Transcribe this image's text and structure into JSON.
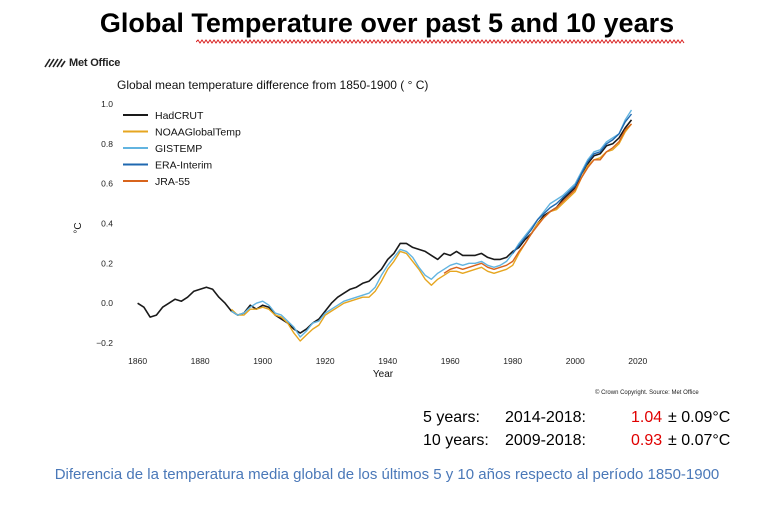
{
  "slide": {
    "title": "Global Temperature over past 5 and 10 years",
    "logo": "Met Office",
    "copyright": "© Crown Copyright. Source: Met Office",
    "caption": "Diferencia de la temperatura media global de los últimos 5 y 10 años respecto al período 1850-1900",
    "stats": [
      {
        "label": "5 years:",
        "range": "2014-2018:",
        "value": "1.04",
        "uncertainty": "± 0.09°C"
      },
      {
        "label": "10 years:",
        "range": "2009-2018:",
        "value": "0.93",
        "uncertainty": "± 0.07°C"
      }
    ]
  },
  "chart_data": {
    "type": "line",
    "title": "Global mean temperature difference from 1850-1900 ( ° C)",
    "xlabel": "Year",
    "ylabel": "°C",
    "xlim": [
      1855,
      2022
    ],
    "ylim": [
      -0.22,
      1.0
    ],
    "xticks": [
      1860,
      1880,
      1900,
      1920,
      1940,
      1960,
      1980,
      2000,
      2020
    ],
    "yticks": [
      -0.2,
      0.0,
      0.2,
      0.4,
      0.6,
      0.8,
      1.0
    ],
    "ytick_labels": [
      "−0.2",
      "0.0",
      "0.2",
      "0.4",
      "0.6",
      "0.8",
      "1.0"
    ],
    "grid": false,
    "legend": "top-left",
    "series": [
      {
        "name": "HadCRUT",
        "color": "#1a1a1a",
        "x": [
          1860,
          1862,
          1864,
          1866,
          1868,
          1870,
          1872,
          1874,
          1876,
          1878,
          1880,
          1882,
          1884,
          1886,
          1888,
          1890,
          1892,
          1894,
          1896,
          1898,
          1900,
          1902,
          1904,
          1906,
          1908,
          1910,
          1912,
          1914,
          1916,
          1918,
          1920,
          1922,
          1924,
          1926,
          1928,
          1930,
          1932,
          1934,
          1936,
          1938,
          1940,
          1942,
          1944,
          1946,
          1948,
          1950,
          1952,
          1954,
          1956,
          1958,
          1960,
          1962,
          1964,
          1966,
          1968,
          1970,
          1972,
          1974,
          1976,
          1978,
          1980,
          1982,
          1984,
          1986,
          1988,
          1990,
          1992,
          1994,
          1996,
          1998,
          2000,
          2002,
          2004,
          2006,
          2008,
          2010,
          2012,
          2014,
          2016,
          2018
        ],
        "y": [
          0.0,
          -0.02,
          -0.07,
          -0.06,
          -0.02,
          0.0,
          0.02,
          0.01,
          0.03,
          0.06,
          0.07,
          0.08,
          0.07,
          0.03,
          0.0,
          -0.04,
          -0.06,
          -0.05,
          -0.01,
          -0.03,
          -0.01,
          -0.02,
          -0.06,
          -0.08,
          -0.1,
          -0.13,
          -0.15,
          -0.13,
          -0.1,
          -0.08,
          -0.04,
          0.0,
          0.03,
          0.05,
          0.07,
          0.08,
          0.1,
          0.11,
          0.14,
          0.17,
          0.22,
          0.25,
          0.3,
          0.3,
          0.28,
          0.27,
          0.26,
          0.24,
          0.22,
          0.25,
          0.24,
          0.26,
          0.24,
          0.24,
          0.24,
          0.25,
          0.23,
          0.22,
          0.22,
          0.23,
          0.26,
          0.28,
          0.32,
          0.35,
          0.4,
          0.44,
          0.46,
          0.48,
          0.52,
          0.55,
          0.58,
          0.65,
          0.7,
          0.74,
          0.75,
          0.79,
          0.8,
          0.83,
          0.88,
          0.92
        ]
      },
      {
        "name": "NOAAGlobalTemp",
        "color": "#e6a620",
        "x": [
          1890,
          1892,
          1894,
          1896,
          1898,
          1900,
          1902,
          1904,
          1906,
          1908,
          1910,
          1912,
          1914,
          1916,
          1918,
          1920,
          1922,
          1924,
          1926,
          1928,
          1930,
          1932,
          1934,
          1936,
          1938,
          1940,
          1942,
          1944,
          1946,
          1948,
          1950,
          1952,
          1954,
          1956,
          1958,
          1960,
          1962,
          1964,
          1966,
          1968,
          1970,
          1972,
          1974,
          1976,
          1978,
          1980,
          1982,
          1984,
          1986,
          1988,
          1990,
          1992,
          1994,
          1996,
          1998,
          2000,
          2002,
          2004,
          2006,
          2008,
          2010,
          2012,
          2014,
          2016,
          2018
        ],
        "y": [
          -0.03,
          -0.06,
          -0.06,
          -0.03,
          -0.03,
          -0.02,
          -0.03,
          -0.06,
          -0.07,
          -0.1,
          -0.15,
          -0.19,
          -0.16,
          -0.13,
          -0.11,
          -0.06,
          -0.04,
          -0.02,
          0.0,
          0.01,
          0.02,
          0.03,
          0.03,
          0.06,
          0.11,
          0.17,
          0.21,
          0.26,
          0.25,
          0.21,
          0.17,
          0.12,
          0.09,
          0.12,
          0.14,
          0.16,
          0.16,
          0.15,
          0.16,
          0.17,
          0.18,
          0.16,
          0.15,
          0.16,
          0.17,
          0.19,
          0.25,
          0.3,
          0.35,
          0.4,
          0.43,
          0.46,
          0.47,
          0.5,
          0.53,
          0.56,
          0.63,
          0.69,
          0.72,
          0.73,
          0.76,
          0.77,
          0.8,
          0.86,
          0.9
        ]
      },
      {
        "name": "GISTEMP",
        "color": "#62b4e0",
        "x": [
          1890,
          1892,
          1894,
          1896,
          1898,
          1900,
          1902,
          1904,
          1906,
          1908,
          1910,
          1912,
          1914,
          1916,
          1918,
          1920,
          1922,
          1924,
          1926,
          1928,
          1930,
          1932,
          1934,
          1936,
          1938,
          1940,
          1942,
          1944,
          1946,
          1948,
          1950,
          1952,
          1954,
          1956,
          1958,
          1960,
          1962,
          1964,
          1966,
          1968,
          1970,
          1972,
          1974,
          1976,
          1978,
          1980,
          1982,
          1984,
          1986,
          1988,
          1990,
          1992,
          1994,
          1996,
          1998,
          2000,
          2002,
          2004,
          2006,
          2008,
          2010,
          2012,
          2014,
          2016,
          2018
        ],
        "y": [
          -0.04,
          -0.06,
          -0.05,
          -0.02,
          0.0,
          0.01,
          -0.01,
          -0.05,
          -0.06,
          -0.09,
          -0.12,
          -0.17,
          -0.14,
          -0.1,
          -0.09,
          -0.05,
          -0.03,
          -0.01,
          0.01,
          0.02,
          0.03,
          0.04,
          0.05,
          0.08,
          0.14,
          0.19,
          0.23,
          0.27,
          0.26,
          0.23,
          0.18,
          0.14,
          0.12,
          0.15,
          0.17,
          0.19,
          0.2,
          0.19,
          0.2,
          0.2,
          0.21,
          0.19,
          0.18,
          0.19,
          0.21,
          0.25,
          0.3,
          0.34,
          0.38,
          0.42,
          0.46,
          0.5,
          0.52,
          0.54,
          0.57,
          0.6,
          0.66,
          0.72,
          0.76,
          0.77,
          0.81,
          0.83,
          0.85,
          0.92,
          0.97
        ]
      },
      {
        "name": "ERA-Interim",
        "color": "#1f68b0",
        "x": [
          1980,
          1982,
          1984,
          1986,
          1988,
          1990,
          1992,
          1994,
          1996,
          1998,
          2000,
          2002,
          2004,
          2006,
          2008,
          2010,
          2012,
          2014,
          2016,
          2018
        ],
        "y": [
          0.25,
          0.29,
          0.33,
          0.37,
          0.42,
          0.45,
          0.48,
          0.5,
          0.53,
          0.56,
          0.59,
          0.65,
          0.71,
          0.75,
          0.76,
          0.8,
          0.82,
          0.85,
          0.91,
          0.95
        ]
      },
      {
        "name": "JRA-55",
        "color": "#d8641c",
        "x": [
          1958,
          1960,
          1962,
          1964,
          1966,
          1968,
          1970,
          1972,
          1974,
          1976,
          1978,
          1980,
          1982,
          1984,
          1986,
          1988,
          1990,
          1992,
          1994,
          1996,
          1998,
          2000,
          2002,
          2004,
          2006,
          2008,
          2010,
          2012,
          2014,
          2016,
          2018
        ],
        "y": [
          0.15,
          0.17,
          0.18,
          0.17,
          0.18,
          0.19,
          0.2,
          0.18,
          0.17,
          0.18,
          0.19,
          0.21,
          0.26,
          0.3,
          0.35,
          0.39,
          0.43,
          0.46,
          0.48,
          0.51,
          0.54,
          0.57,
          0.63,
          0.68,
          0.72,
          0.72,
          0.76,
          0.78,
          0.81,
          0.87,
          0.9
        ]
      }
    ]
  }
}
